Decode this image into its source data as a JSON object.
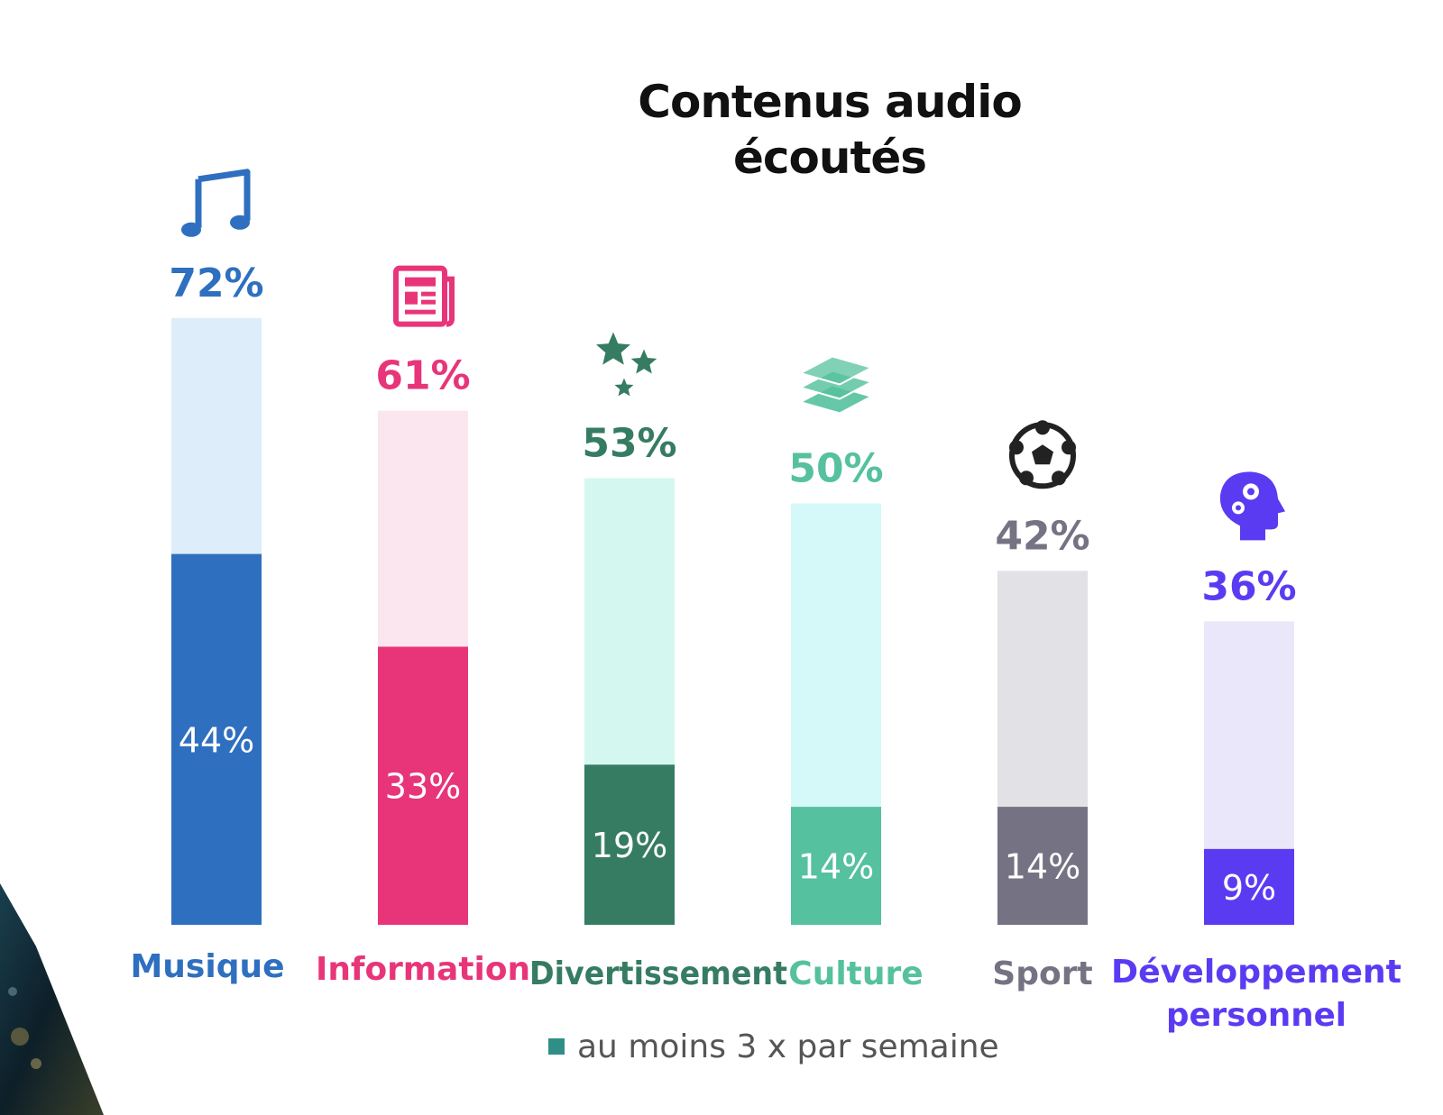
{
  "chart_data": {
    "type": "bar",
    "title": [
      "Contenus audio",
      "écoutés"
    ],
    "categories": [
      [
        "Musique"
      ],
      [
        "Information"
      ],
      [
        "Divertissement"
      ],
      [
        "Culture"
      ],
      [
        "Sport"
      ],
      [
        "Développement",
        "personnel"
      ]
    ],
    "series": [
      {
        "values": [
          72,
          61,
          53,
          50,
          42,
          36
        ],
        "value_labels": [
          "72%",
          "61%",
          "53%",
          "50%",
          "42%",
          "36%"
        ]
      },
      {
        "name": "au moins 3 x par semaine",
        "values": [
          44,
          33,
          19,
          14,
          14,
          9
        ],
        "value_labels": [
          "44%",
          "33%",
          "19%",
          "14%",
          "14%",
          "9%"
        ]
      }
    ],
    "colors": {
      "dark": [
        "#2f6fbf",
        "#e8357a",
        "#357c62",
        "#55c19e",
        "#757383",
        "#5b3bf2"
      ],
      "light": [
        "#ddeefa",
        "#fbe6ef",
        "#d4f8f0",
        "#d5f8f8",
        "#e2e2e6",
        "#ebe7fa"
      ],
      "legend_swatch": "#2f8f86"
    },
    "icons": [
      "music-note-icon",
      "newspaper-icon",
      "stars-icon",
      "books-icon",
      "soccer-ball-icon",
      "head-gears-icon"
    ],
    "ylim": [
      0,
      100
    ],
    "legend_position": "bottom-center"
  }
}
